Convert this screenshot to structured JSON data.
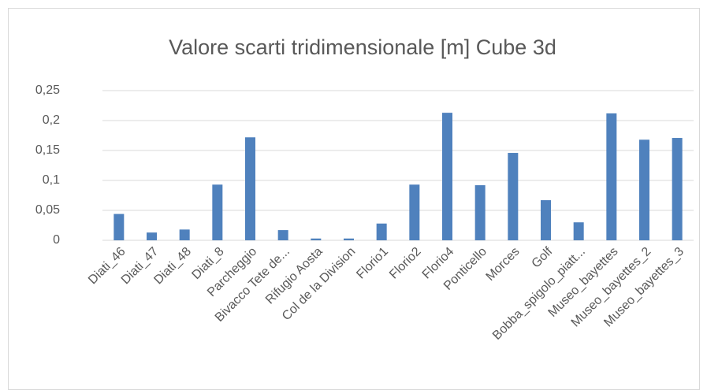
{
  "chart_data": {
    "type": "bar",
    "title": "Valore scarti tridimensionale [m] Cube 3d",
    "categories": [
      "Diati_46",
      "Diati_47",
      "Diati_48",
      "Diati_8",
      "Parcheggio",
      "Bivacco Tete de...",
      "Rifugio Aosta",
      "Col de la Division",
      "Florio1",
      "Florio2",
      "Florio4",
      "Ponticello",
      "Morces",
      "Golf",
      "Bobba_spigolo_piatt...",
      "Museo_bayettes",
      "Museo_bayettes_2",
      "Museo_bayettes_3"
    ],
    "values": [
      0.044,
      0.013,
      0.018,
      0.093,
      0.172,
      0.017,
      0.003,
      0.003,
      0.028,
      0.093,
      0.213,
      0.092,
      0.146,
      0.067,
      0.03,
      0.212,
      0.168,
      0.171
    ],
    "color": "#4f81bd",
    "ylim": [
      0,
      0.25
    ],
    "yticks": [
      0,
      {
        "value": 0.05,
        "label": "0,05"
      },
      {
        "value": 0.1,
        "label": "0,1"
      },
      {
        "value": 0.15,
        "label": "0,15"
      },
      {
        "value": 0.2,
        "label": "0,2"
      },
      {
        "value": 0.25,
        "label": "0,25"
      }
    ],
    "grid": true
  }
}
